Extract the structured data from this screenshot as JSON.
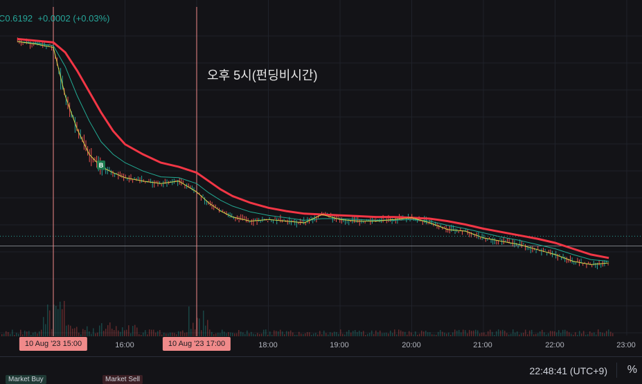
{
  "header": {
    "symbol_fragment": "C",
    "last_price": "0.6192",
    "change": "+0.0002",
    "change_pct": "(+0.03%)"
  },
  "annotation": "오후 5시(펀딩비시간)",
  "time_axis": {
    "labels": [
      "16:00",
      "18:00",
      "19:00",
      "20:00",
      "21:00",
      "22:00",
      "23:00"
    ],
    "highlight_tags": [
      "10 Aug '23   15:00",
      "10 Aug '23   17:00"
    ]
  },
  "footer": {
    "clock": "22:48:41 (UTC+9)",
    "percent_button": "%",
    "legend_buy": "Market Buy",
    "legend_sell": "Market Sell"
  },
  "marker": {
    "label": "B"
  },
  "colors": {
    "background": "#131317",
    "up": "#26a69a",
    "down": "#ef5350",
    "ma_slow": "#f23645",
    "ma_mid": "#22ab94",
    "ma_fast": "#d4d94a",
    "vline": "#f08a8a"
  },
  "chart_data": {
    "type": "line",
    "x_unit": "time (10 Aug '23, UTC+9)",
    "x": [
      "14:30",
      "14:45",
      "15:00",
      "15:10",
      "15:20",
      "15:30",
      "15:40",
      "15:50",
      "16:00",
      "16:15",
      "16:30",
      "16:45",
      "17:00",
      "17:10",
      "17:20",
      "17:30",
      "17:45",
      "18:00",
      "18:15",
      "18:30",
      "18:45",
      "19:00",
      "19:15",
      "19:30",
      "19:45",
      "20:00",
      "20:15",
      "20:30",
      "20:45",
      "21:00",
      "21:15",
      "21:30",
      "21:45",
      "22:00",
      "22:15",
      "22:30",
      "22:45"
    ],
    "series": [
      {
        "values": [
          0.6425,
          0.6422,
          0.6418,
          0.636,
          0.632,
          0.629,
          0.6275,
          0.6268,
          0.6262,
          0.6258,
          0.6255,
          0.6258,
          0.6245,
          0.6232,
          0.6222,
          0.6215,
          0.621,
          0.6212,
          0.621,
          0.6208,
          0.6218,
          0.6212,
          0.621,
          0.621,
          0.6212,
          0.6214,
          0.6208,
          0.62,
          0.6198,
          0.619,
          0.6186,
          0.6182,
          0.6176,
          0.617,
          0.6162,
          0.6158,
          0.616
        ]
      },
      {
        "values": [
          0.6425,
          0.6423,
          0.642,
          0.6395,
          0.636,
          0.633,
          0.6305,
          0.629,
          0.628,
          0.627,
          0.6263,
          0.6262,
          0.6255,
          0.6244,
          0.6235,
          0.6228,
          0.6221,
          0.6217,
          0.6214,
          0.6211,
          0.6213,
          0.6213,
          0.6212,
          0.6211,
          0.6211,
          0.6212,
          0.621,
          0.6205,
          0.6201,
          0.6196,
          0.6191,
          0.6187,
          0.6182,
          0.6177,
          0.617,
          0.6164,
          0.6162
        ]
      },
      {
        "values": [
          0.6428,
          0.6426,
          0.6424,
          0.6412,
          0.639,
          0.6365,
          0.634,
          0.6318,
          0.6302,
          0.629,
          0.628,
          0.6275,
          0.6268,
          0.6258,
          0.6248,
          0.624,
          0.6232,
          0.6226,
          0.6222,
          0.6219,
          0.6218,
          0.6217,
          0.6216,
          0.6215,
          0.6215,
          0.6214,
          0.6213,
          0.621,
          0.6206,
          0.6201,
          0.6197,
          0.6193,
          0.6189,
          0.6184,
          0.6177,
          0.617,
          0.6166
        ]
      }
    ],
    "current_price": 0.6192,
    "volume_overlay": true,
    "grid": true,
    "vertical_markers": [
      "15:00",
      "17:00"
    ]
  }
}
